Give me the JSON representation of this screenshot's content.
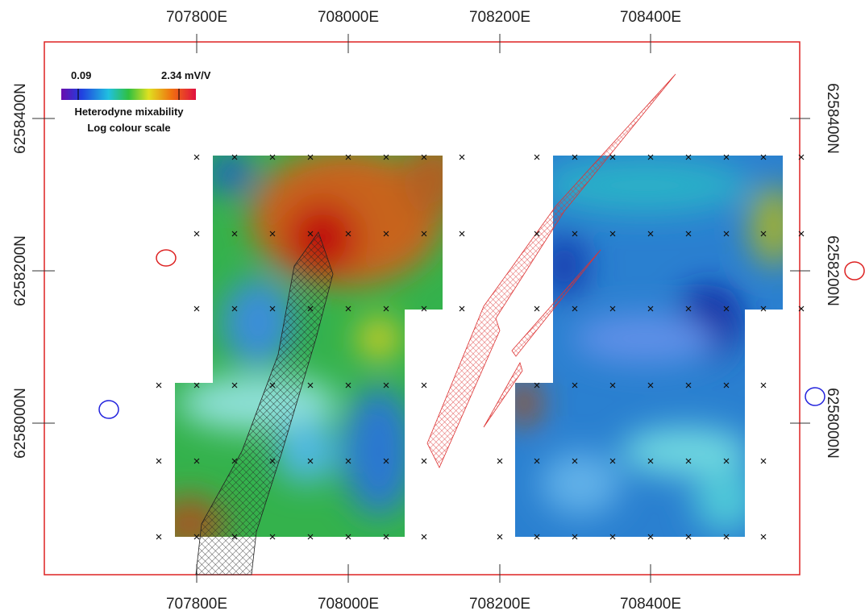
{
  "map": {
    "x_axis_labels": [
      "707800E",
      "708000E",
      "708200E",
      "708400E"
    ],
    "y_axis_labels": [
      "6258400N",
      "6258200N",
      "6258000N"
    ],
    "legend": {
      "min_label": "0.09",
      "max_label": "2.34 mV/V",
      "title": "Heterodyne mixability",
      "subtitle": "Log colour scale"
    }
  }
}
